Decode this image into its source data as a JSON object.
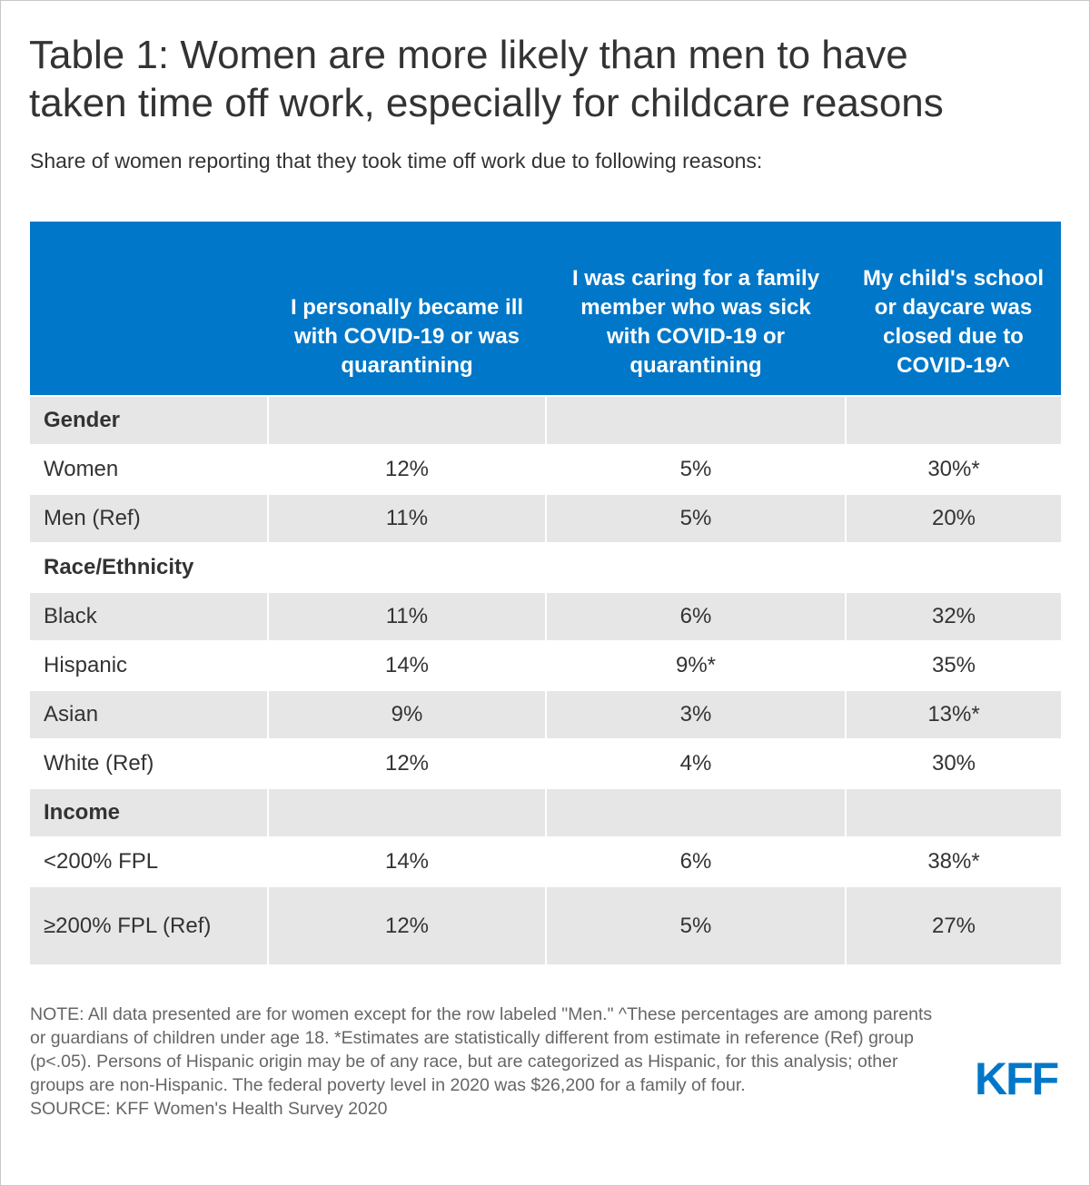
{
  "title_lines": [
    "Table 1: Women are more likely than men to have",
    "taken time off work, especially for childcare reasons"
  ],
  "subtitle": "Share of women reporting that they took time off work due to following reasons:",
  "chart_data": {
    "type": "table",
    "columns": [
      "",
      "I personally became ill with COVID-19 or was quarantining",
      "I was caring for a family member who was sick with COVID-19 or quarantining",
      "My child's school or daycare was closed due to COVID-19^"
    ],
    "groups": [
      {
        "name": "Gender",
        "rows": [
          {
            "label": "Women",
            "values": [
              "12%",
              "5%",
              "30%*"
            ]
          },
          {
            "label": "Men (Ref)",
            "values": [
              "11%",
              "5%",
              "20%"
            ]
          }
        ]
      },
      {
        "name": "Race/Ethnicity",
        "rows": [
          {
            "label": "Black",
            "values": [
              "11%",
              "6%",
              "32%"
            ]
          },
          {
            "label": "Hispanic",
            "values": [
              "14%",
              "9%*",
              "35%"
            ]
          },
          {
            "label": "Asian",
            "values": [
              "9%",
              "3%",
              "13%*"
            ]
          },
          {
            "label": "White (Ref)",
            "values": [
              "12%",
              "4%",
              "30%"
            ]
          }
        ]
      },
      {
        "name": "Income",
        "rows": [
          {
            "label": "<200% FPL",
            "values": [
              "14%",
              "6%",
              "38%*"
            ]
          },
          {
            "label": "≥200% FPL (Ref)",
            "values": [
              "12%",
              "5%",
              "27%"
            ]
          }
        ]
      }
    ]
  },
  "note": "NOTE: All data presented are for women except for the row labeled \"Men.\" ^These percentages are among parents or guardians of children under age 18. *Estimates are statistically different from estimate in reference (Ref) group (p<.05). Persons of Hispanic origin may be of any race, but are categorized as Hispanic, for this analysis; other groups are non-Hispanic. The federal poverty level in 2020 was $26,200 for a family of four.",
  "source": "SOURCE: KFF Women's Health Survey 2020",
  "logo_text": "KFF",
  "colors": {
    "header_bg": "#0077c8",
    "shaded_row": "#e6e6e6",
    "brand": "#0077c8"
  }
}
